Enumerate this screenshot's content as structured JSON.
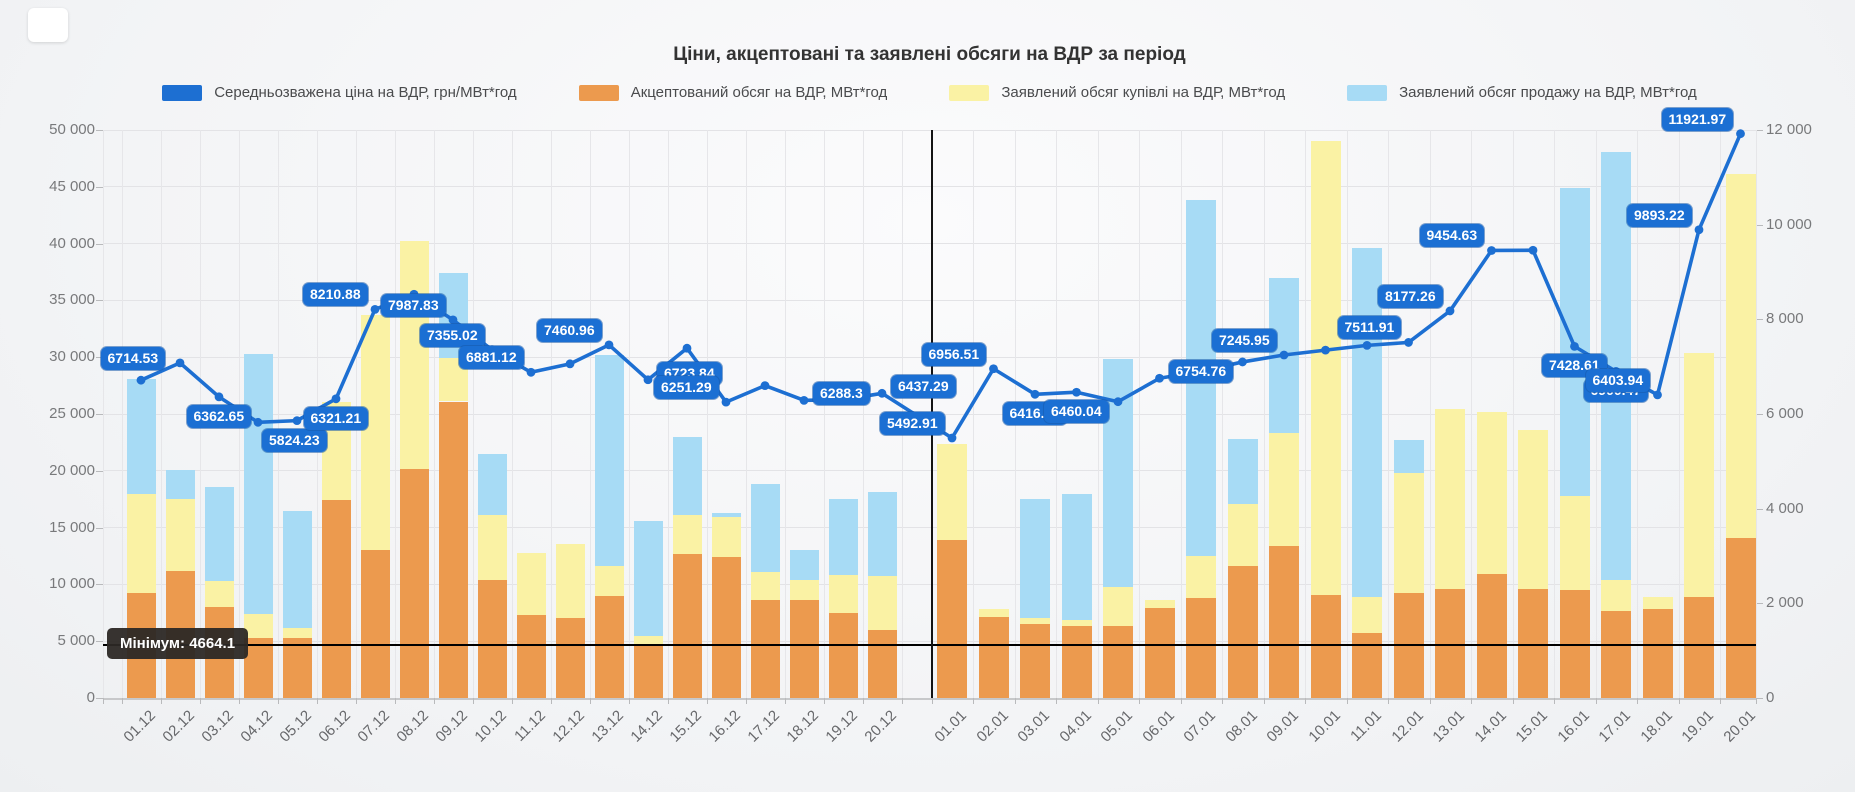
{
  "chart_data": {
    "type": "bar+line combo",
    "title": "Ціни, акцептовані та заявлені обсяги на ВДР за період",
    "legend": [
      {
        "label": "Середньозважена ціна на ВДР, грн/МВт*год",
        "color": "#1D6FD2",
        "kind": "line"
      },
      {
        "label": "Акцептований обсяг на ВДР, МВт*год",
        "color": "#EC9A4E",
        "kind": "bar"
      },
      {
        "label": "Заявлений обсяг купівлі на ВДР, МВт*год",
        "color": "#FAF2A4",
        "kind": "bar"
      },
      {
        "label": "Заявлений обсяг продажу на ВДР, МВт*год",
        "color": "#A7DBF5",
        "kind": "bar"
      }
    ],
    "left_axis": {
      "min": 0,
      "max": 50000,
      "tick_step": 5000,
      "tick_labels_top_to_bottom": [
        "50 000",
        "45 000",
        "40 000",
        "35 000",
        "30 000",
        "25 000",
        "20 000",
        "15 000",
        "10 000",
        "5 000",
        "0"
      ]
    },
    "right_axis": {
      "min": 0,
      "max": 12000,
      "tick_step": 2000,
      "tick_labels_top_to_bottom": [
        "12 000",
        "10 000",
        "8 000",
        "6 000",
        "4 000",
        "2 000",
        "0"
      ]
    },
    "annotation": {
      "text": "Мінімум: 4664.1",
      "value": 4664.1,
      "axis": "left"
    },
    "divider_after_category": "20.12",
    "categories": [
      "01.12",
      "02.12",
      "03.12",
      "04.12",
      "05.12",
      "06.12",
      "07.12",
      "08.12",
      "09.12",
      "10.12",
      "11.12",
      "12.12",
      "13.12",
      "14.12",
      "15.12",
      "16.12",
      "17.12",
      "18.12",
      "19.12",
      "20.12",
      "01.01",
      "02.01",
      "03.01",
      "04.01",
      "05.01",
      "06.01",
      "07.01",
      "08.01",
      "09.01",
      "10.01",
      "11.01",
      "12.01",
      "13.01",
      "14.01",
      "15.01",
      "16.01",
      "17.01",
      "18.01",
      "19.01",
      "20.01"
    ],
    "bars": {
      "stacked": true,
      "accepted": [
        9200,
        11200,
        8000,
        5300,
        5300,
        17400,
        13000,
        20200,
        26100,
        10400,
        7300,
        7000,
        9000,
        4700,
        12700,
        12400,
        8600,
        8600,
        7500,
        6000,
        13900,
        7100,
        6500,
        6300,
        6300,
        7900,
        8800,
        11600,
        13400,
        9100,
        5700,
        9200,
        9600,
        10900,
        9600,
        9500,
        7700,
        7800,
        8900,
        14100
      ],
      "purchase_top": [
        18000,
        17500,
        10300,
        7400,
        6200,
        26100,
        33700,
        40200,
        29900,
        16100,
        12800,
        13600,
        11600,
        5500,
        16100,
        15900,
        11100,
        10400,
        10800,
        10700,
        22400,
        7800,
        7000,
        6900,
        9800,
        8600,
        12500,
        17100,
        23300,
        49000,
        8900,
        19800,
        25400,
        25200,
        23600,
        17800,
        10400,
        8900,
        30400,
        46100
      ],
      "sale_top": [
        28100,
        20100,
        18600,
        30300,
        16500,
        null,
        null,
        null,
        37400,
        21500,
        null,
        null,
        30200,
        15600,
        23000,
        16300,
        18800,
        13000,
        17500,
        18100,
        null,
        null,
        17500,
        18000,
        29800,
        null,
        43800,
        22800,
        37000,
        null,
        39600,
        22700,
        null,
        null,
        null,
        44900,
        48100,
        null,
        null,
        null
      ]
    },
    "line": {
      "name": "Середньозважена ціна на ВДР, грн/МВт*год",
      "axis": "right",
      "values": [
        6714.53,
        7080,
        6362.65,
        5824.23,
        5860,
        6321.21,
        8210.88,
        8530,
        7987.83,
        7355.02,
        6881.12,
        7060,
        7460.96,
        6723.84,
        7390,
        6251.29,
        6600,
        6288.3,
        6300,
        6437.29,
        5492.91,
        6956.51,
        6416.41,
        6460.04,
        6260,
        6754.76,
        6900,
        7100,
        7245.95,
        7350,
        7450,
        7511.91,
        8177.26,
        9454.63,
        9460,
        7428.61,
        6900.47,
        6403.94,
        9893.22,
        11921.97
      ],
      "labels": [
        "6714.53",
        null,
        "6362.65",
        "5824.23",
        null,
        "6321.21",
        "8210.88",
        null,
        "7987.83",
        "7355.02",
        "6881.12",
        null,
        "7460.96",
        "6723.84",
        null,
        "6251.29",
        null,
        "6288.3",
        null,
        "6437.29",
        "5492.91",
        "6956.51",
        "6416.41",
        "6460.04",
        null,
        "6754.76",
        null,
        null,
        "7245.95",
        null,
        null,
        "7511.91",
        "8177.26",
        "9454.63",
        null,
        "7428.61",
        "6900.47",
        "6403.94",
        "9893.22",
        "11921.97"
      ],
      "label_pos": {
        "0": "a",
        "2": "b",
        "3": "br",
        "5": "b",
        "13": "r",
        "17": "r",
        "19": "r",
        "22": "b",
        "23": "b",
        "25": "r",
        "35": "b",
        "36": "b"
      }
    }
  }
}
